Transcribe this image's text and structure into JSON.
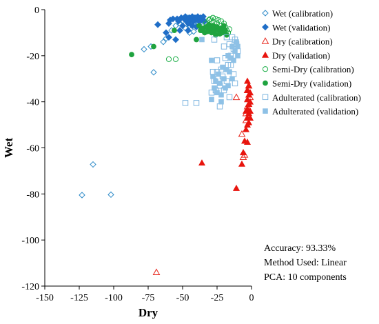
{
  "chart_data": {
    "type": "scatter",
    "title": "",
    "xlabel": "Dry",
    "ylabel": "Wet",
    "xlim": [
      -150,
      0
    ],
    "ylim": [
      -120,
      0
    ],
    "xticks": [
      -150,
      -125,
      -100,
      -75,
      -50,
      -25,
      0
    ],
    "yticks": [
      0,
      -20,
      -40,
      -60,
      -80,
      -100,
      -120
    ],
    "grid": false,
    "legend_position": "right",
    "series": [
      {
        "name": "Wet (calibration)",
        "marker": "diamond-open",
        "color": "#2e8bc9",
        "points": [
          [
            -123,
            -80.5
          ],
          [
            -102,
            -80.3
          ],
          [
            -115,
            -67.2
          ],
          [
            -71,
            -27.2
          ],
          [
            -78,
            -17.2
          ],
          [
            -73,
            -16
          ],
          [
            -64,
            -14
          ],
          [
            -62,
            -12.5
          ],
          [
            -58,
            -9
          ],
          [
            -55,
            -7
          ],
          [
            -52,
            -6
          ],
          [
            -50,
            -5
          ],
          [
            -48,
            -4
          ],
          [
            -47,
            -4.5
          ],
          [
            -46,
            -3.5
          ],
          [
            -45,
            -7
          ],
          [
            -44,
            -5
          ],
          [
            -43,
            -4
          ],
          [
            -42,
            -3.5
          ],
          [
            -41,
            -5.5
          ],
          [
            -40,
            -4.5
          ],
          [
            -39,
            -6
          ],
          [
            -38,
            -4
          ],
          [
            -37,
            -5
          ],
          [
            -36,
            -4
          ],
          [
            -35,
            -7
          ],
          [
            -45,
            -10
          ],
          [
            -42,
            -9.5
          ],
          [
            -48,
            -8
          ]
        ]
      },
      {
        "name": "Wet (validation)",
        "marker": "diamond-filled",
        "color": "#1f6ec7",
        "points": [
          [
            -57,
            -4
          ],
          [
            -59,
            -4.5
          ],
          [
            -55,
            -13
          ],
          [
            -62,
            -10
          ],
          [
            -60,
            -6
          ],
          [
            -54,
            -4
          ],
          [
            -53,
            -5
          ],
          [
            -51,
            -3.5
          ],
          [
            -50,
            -7
          ],
          [
            -49,
            -4
          ],
          [
            -48,
            -3
          ],
          [
            -47,
            -5
          ],
          [
            -46,
            -6
          ],
          [
            -45,
            -3.5
          ],
          [
            -44,
            -4.5
          ],
          [
            -43,
            -3
          ],
          [
            -42,
            -5
          ],
          [
            -41,
            -3.5
          ],
          [
            -40,
            -4
          ],
          [
            -39,
            -3
          ],
          [
            -38,
            -5
          ],
          [
            -37,
            -3.5
          ],
          [
            -36,
            -4.5
          ],
          [
            -35,
            -3
          ],
          [
            -34,
            -5
          ],
          [
            -43,
            -7
          ],
          [
            -40,
            -7.5
          ],
          [
            -46,
            -9
          ],
          [
            -52,
            -9
          ],
          [
            -68,
            -6.5
          ],
          [
            -60,
            -12
          ]
        ]
      },
      {
        "name": "Dry (calibration)",
        "marker": "triangle-open",
        "color": "#e8261c",
        "points": [
          [
            -69,
            -114
          ],
          [
            -11,
            -38
          ],
          [
            -7,
            -54
          ],
          [
            -6,
            -64
          ],
          [
            -5,
            -63
          ],
          [
            -4,
            -45
          ],
          [
            -3,
            -42
          ],
          [
            -2,
            -41
          ],
          [
            -3,
            -35
          ],
          [
            -2,
            -33
          ],
          [
            -1,
            -38
          ],
          [
            -4,
            -48
          ],
          [
            -2,
            -46
          ]
        ]
      },
      {
        "name": "Dry (validation)",
        "marker": "triangle-filled",
        "color": "#e8150e",
        "points": [
          [
            -36,
            -66.5
          ],
          [
            -11,
            -77.5
          ],
          [
            -7,
            -67
          ],
          [
            -6,
            -62
          ],
          [
            -5,
            -57
          ],
          [
            -3,
            -57.5
          ],
          [
            -4,
            -52
          ],
          [
            -3,
            -50
          ],
          [
            -3,
            -47
          ],
          [
            -2,
            -45
          ],
          [
            -3,
            -43
          ],
          [
            -2,
            -41
          ],
          [
            -3,
            -39
          ],
          [
            -2,
            -37
          ],
          [
            -3,
            -35
          ],
          [
            -2,
            -33
          ],
          [
            -3,
            -31
          ],
          [
            -1,
            -44
          ],
          [
            -1,
            -40
          ],
          [
            -1,
            -36
          ],
          [
            -4,
            -44
          ],
          [
            -2,
            -49
          ],
          [
            -1,
            -47
          ]
        ]
      },
      {
        "name": "Semi-Dry (calibration)",
        "marker": "circle-open",
        "color": "#1faf4a",
        "points": [
          [
            -60,
            -21.5
          ],
          [
            -55,
            -21.5
          ],
          [
            -36,
            -9
          ],
          [
            -33,
            -6
          ],
          [
            -31,
            -4.5
          ],
          [
            -30,
            -4
          ],
          [
            -29,
            -5
          ],
          [
            -28,
            -3.5
          ],
          [
            -27,
            -5.5
          ],
          [
            -26,
            -4
          ],
          [
            -25,
            -6
          ],
          [
            -24,
            -4.5
          ],
          [
            -23,
            -7
          ],
          [
            -22,
            -5
          ],
          [
            -21,
            -8
          ],
          [
            -20,
            -6
          ],
          [
            -19,
            -7.5
          ],
          [
            -18,
            -9
          ],
          [
            -17,
            -10
          ],
          [
            -16,
            -8.5
          ],
          [
            -26,
            -9
          ],
          [
            -30,
            -8
          ]
        ]
      },
      {
        "name": "Semi-Dry (validation)",
        "marker": "circle-filled",
        "color": "#1fa33f",
        "points": [
          [
            -87,
            -19.5
          ],
          [
            -71,
            -16
          ],
          [
            -56,
            -9
          ],
          [
            -40,
            -13
          ],
          [
            -38,
            -7
          ],
          [
            -37,
            -9
          ],
          [
            -35,
            -8
          ],
          [
            -34,
            -10
          ],
          [
            -33,
            -7.5
          ],
          [
            -32,
            -9.5
          ],
          [
            -31,
            -6.5
          ],
          [
            -30,
            -8
          ],
          [
            -29,
            -10
          ],
          [
            -28,
            -7
          ],
          [
            -27,
            -9
          ],
          [
            -26,
            -11
          ],
          [
            -25,
            -7.5
          ],
          [
            -24,
            -9
          ],
          [
            -23,
            -10.5
          ],
          [
            -22,
            -8
          ],
          [
            -21,
            -10
          ],
          [
            -20,
            -7
          ],
          [
            -19,
            -9
          ],
          [
            -18,
            -11
          ]
        ]
      },
      {
        "name": "Adulterated (calibration)",
        "marker": "square-open",
        "color": "#7fb6e0",
        "points": [
          [
            -48,
            -40.5
          ],
          [
            -40,
            -40.5
          ],
          [
            -23,
            -42
          ],
          [
            -29,
            -36
          ],
          [
            -27,
            -31
          ],
          [
            -26,
            -35
          ],
          [
            -25,
            -27
          ],
          [
            -24,
            -30
          ],
          [
            -23,
            -33
          ],
          [
            -22,
            -26
          ],
          [
            -21,
            -29
          ],
          [
            -20,
            -35
          ],
          [
            -19,
            -21
          ],
          [
            -18,
            -31
          ],
          [
            -17,
            -24
          ],
          [
            -16,
            -15
          ],
          [
            -15,
            -20
          ],
          [
            -14,
            -12
          ],
          [
            -13,
            -17
          ],
          [
            -12,
            -13
          ],
          [
            -11,
            -15
          ],
          [
            -10,
            -18
          ],
          [
            -18,
            -12
          ],
          [
            -15,
            -24
          ],
          [
            -13,
            -28
          ],
          [
            -20,
            -16
          ],
          [
            -25,
            -22
          ],
          [
            -27,
            -13
          ],
          [
            -28,
            -27
          ],
          [
            -16,
            -38
          ],
          [
            -12,
            -32
          ]
        ]
      },
      {
        "name": "Adulterated (validation)",
        "marker": "square-filled",
        "color": "#8ec1e6",
        "points": [
          [
            -36,
            -13
          ],
          [
            -29,
            -22
          ],
          [
            -28,
            -29
          ],
          [
            -27,
            -34
          ],
          [
            -26,
            -31
          ],
          [
            -25,
            -36
          ],
          [
            -24,
            -28
          ],
          [
            -23,
            -32
          ],
          [
            -22,
            -37
          ],
          [
            -21,
            -25
          ],
          [
            -20,
            -30
          ],
          [
            -19,
            -34
          ],
          [
            -18,
            -26
          ],
          [
            -17,
            -20
          ],
          [
            -16,
            -27
          ],
          [
            -15,
            -21
          ],
          [
            -14,
            -16
          ],
          [
            -13,
            -22
          ],
          [
            -12,
            -18
          ],
          [
            -11,
            -14
          ],
          [
            -10,
            -20
          ],
          [
            -29,
            -39
          ],
          [
            -22,
            -40
          ],
          [
            -17,
            -33
          ],
          [
            -14,
            -30
          ],
          [
            -10,
            -16
          ]
        ]
      }
    ],
    "annotations": [
      "Accuracy: 93.33%",
      "Method Used: Linear",
      "PCA: 10 components"
    ]
  }
}
